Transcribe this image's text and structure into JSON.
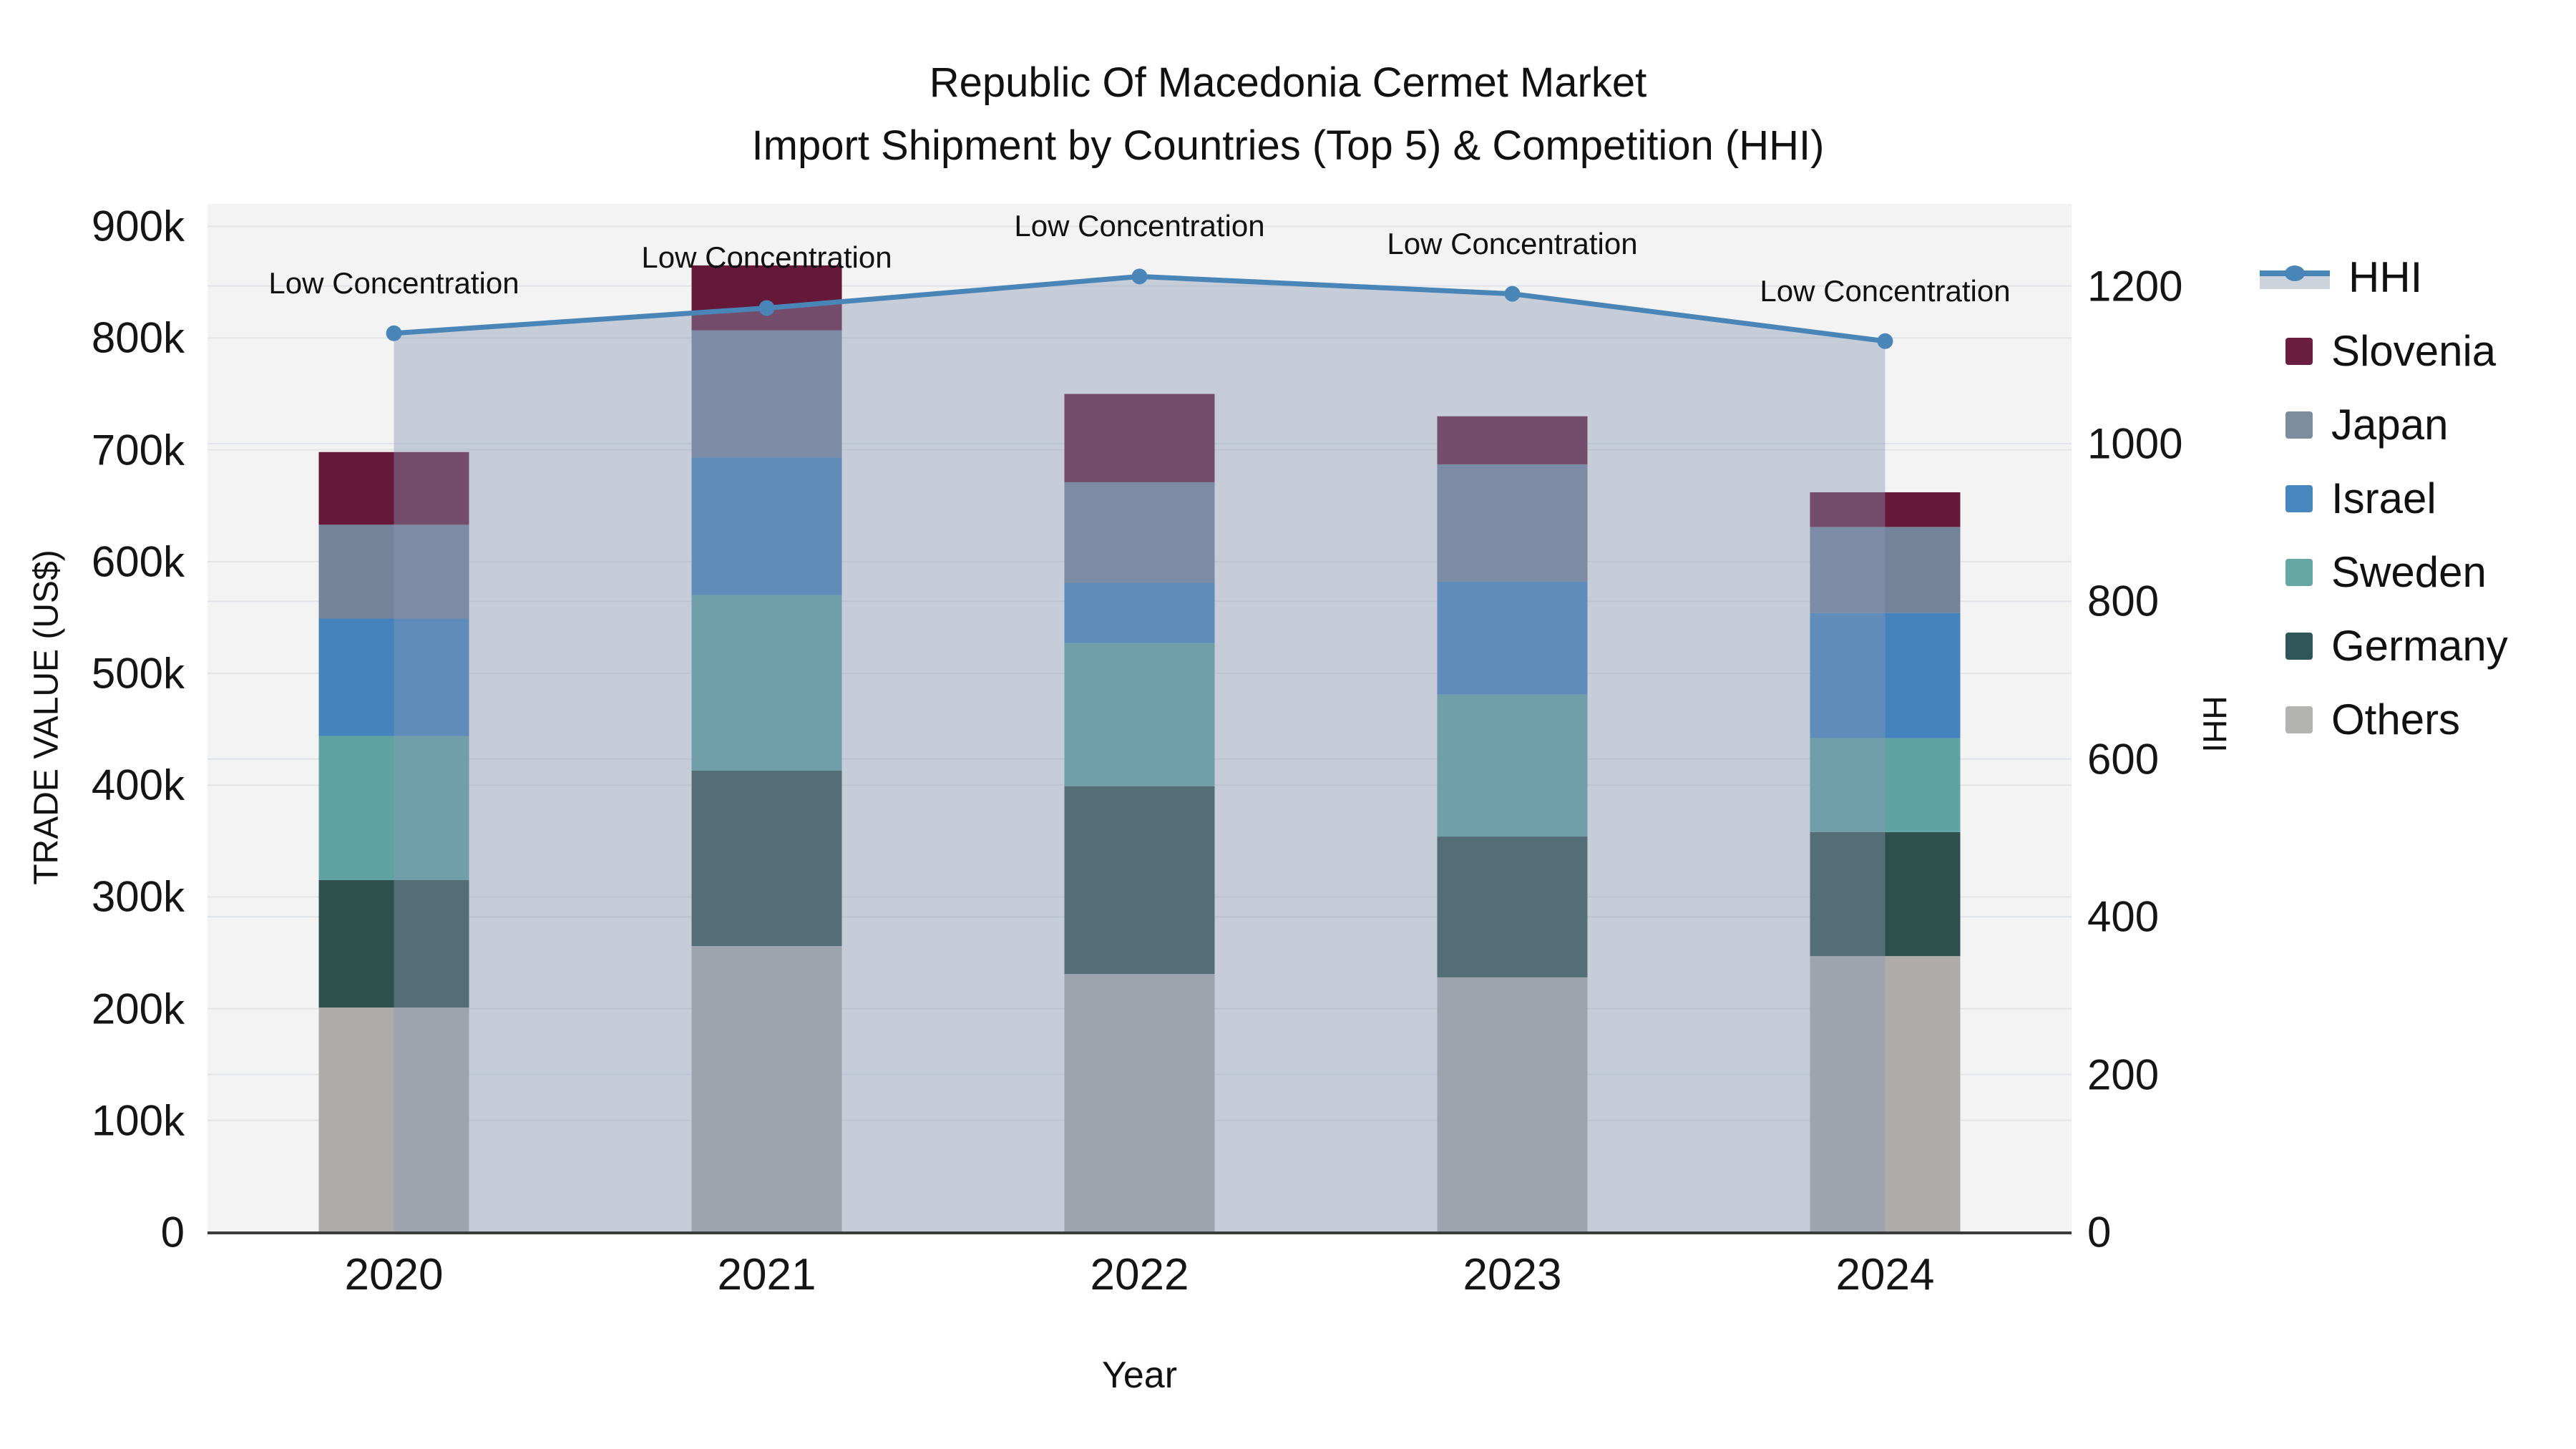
{
  "title": {
    "line1": "Republic Of Macedonia Cermet Market",
    "line2": "Import Shipment by Countries (Top 5) & Competition (HHI)"
  },
  "axes": {
    "x_title": "Year",
    "left_title": "TRADE VALUE (US$)",
    "right_title": "HHI",
    "left_ticks": [
      {
        "value_k": 0,
        "label": "0"
      },
      {
        "value_k": 100,
        "label": "100k"
      },
      {
        "value_k": 200,
        "label": "200k"
      },
      {
        "value_k": 300,
        "label": "300k"
      },
      {
        "value_k": 400,
        "label": "400k"
      },
      {
        "value_k": 500,
        "label": "500k"
      },
      {
        "value_k": 600,
        "label": "600k"
      },
      {
        "value_k": 700,
        "label": "700k"
      },
      {
        "value_k": 800,
        "label": "800k"
      },
      {
        "value_k": 900,
        "label": "900k"
      }
    ],
    "right_ticks": [
      {
        "value": 0,
        "label": "0"
      },
      {
        "value": 200,
        "label": "200"
      },
      {
        "value": 400,
        "label": "400"
      },
      {
        "value": 600,
        "label": "600"
      },
      {
        "value": 800,
        "label": "800"
      },
      {
        "value": 1000,
        "label": "1000"
      },
      {
        "value": 1200,
        "label": "1200"
      }
    ]
  },
  "chart_data": {
    "type": "combo: stacked-bar + line (dual axis)",
    "categories": [
      "2020",
      "2021",
      "2022",
      "2023",
      "2024"
    ],
    "unit_note": "bar values in thousand US$",
    "bar_series_bottom_to_top": [
      {
        "name": "Others",
        "color": "#adaca9",
        "values_k": [
          201,
          256,
          231,
          228,
          247
        ]
      },
      {
        "name": "Germany",
        "color": "#2f504d",
        "values_k": [
          114,
          157,
          168,
          126,
          111
        ]
      },
      {
        "name": "Sweden",
        "color": "#60a2a2",
        "values_k": [
          129,
          157,
          128,
          127,
          84
        ]
      },
      {
        "name": "Israel",
        "color": "#4483be",
        "values_k": [
          105,
          123,
          54,
          101,
          112
        ]
      },
      {
        "name": "Japan",
        "color": "#73849a",
        "values_k": [
          84,
          114,
          90,
          105,
          77
        ]
      },
      {
        "name": "Slovenia",
        "color": "#651837",
        "values_k": [
          65,
          58,
          79,
          43,
          31
        ]
      }
    ],
    "bar_totals_k": [
      698,
      865,
      750,
      730,
      662
    ],
    "line_series": {
      "name": "HHI",
      "color": "#4a85b8",
      "area_fill_color": "rgba(136,152,178,0.42)",
      "values": [
        1140,
        1172,
        1212,
        1190,
        1130
      ]
    },
    "annotations": [
      {
        "category": "2020",
        "text": "Low Concentration"
      },
      {
        "category": "2021",
        "text": "Low Concentration"
      },
      {
        "category": "2022",
        "text": "Low Concentration"
      },
      {
        "category": "2023",
        "text": "Low Concentration"
      },
      {
        "category": "2024",
        "text": "Low Concentration"
      }
    ],
    "ylim_left_k": [
      0,
      920
    ],
    "ylim_right": [
      0,
      1304
    ],
    "grid": true,
    "plot_bg": "#f3f3f3",
    "gridline_color_left": "#e4e4e4",
    "gridline_color_right": "#e0e3e8",
    "axis_line_color": "#3c3c3c",
    "legend_position": "right"
  },
  "legend": {
    "items": [
      {
        "label": "HHI",
        "type": "line",
        "color": "#4a85b8",
        "fill": "#ccd3dd"
      },
      {
        "label": "Slovenia",
        "type": "swatch",
        "color": "#6a1f40"
      },
      {
        "label": "Japan",
        "type": "swatch",
        "color": "#7c8da0"
      },
      {
        "label": "Israel",
        "type": "swatch",
        "color": "#4886c0"
      },
      {
        "label": "Sweden",
        "type": "swatch",
        "color": "#66a7a5"
      },
      {
        "label": "Germany",
        "type": "swatch",
        "color": "#315659"
      },
      {
        "label": "Others",
        "type": "swatch",
        "color": "#b3b3b1"
      }
    ]
  }
}
